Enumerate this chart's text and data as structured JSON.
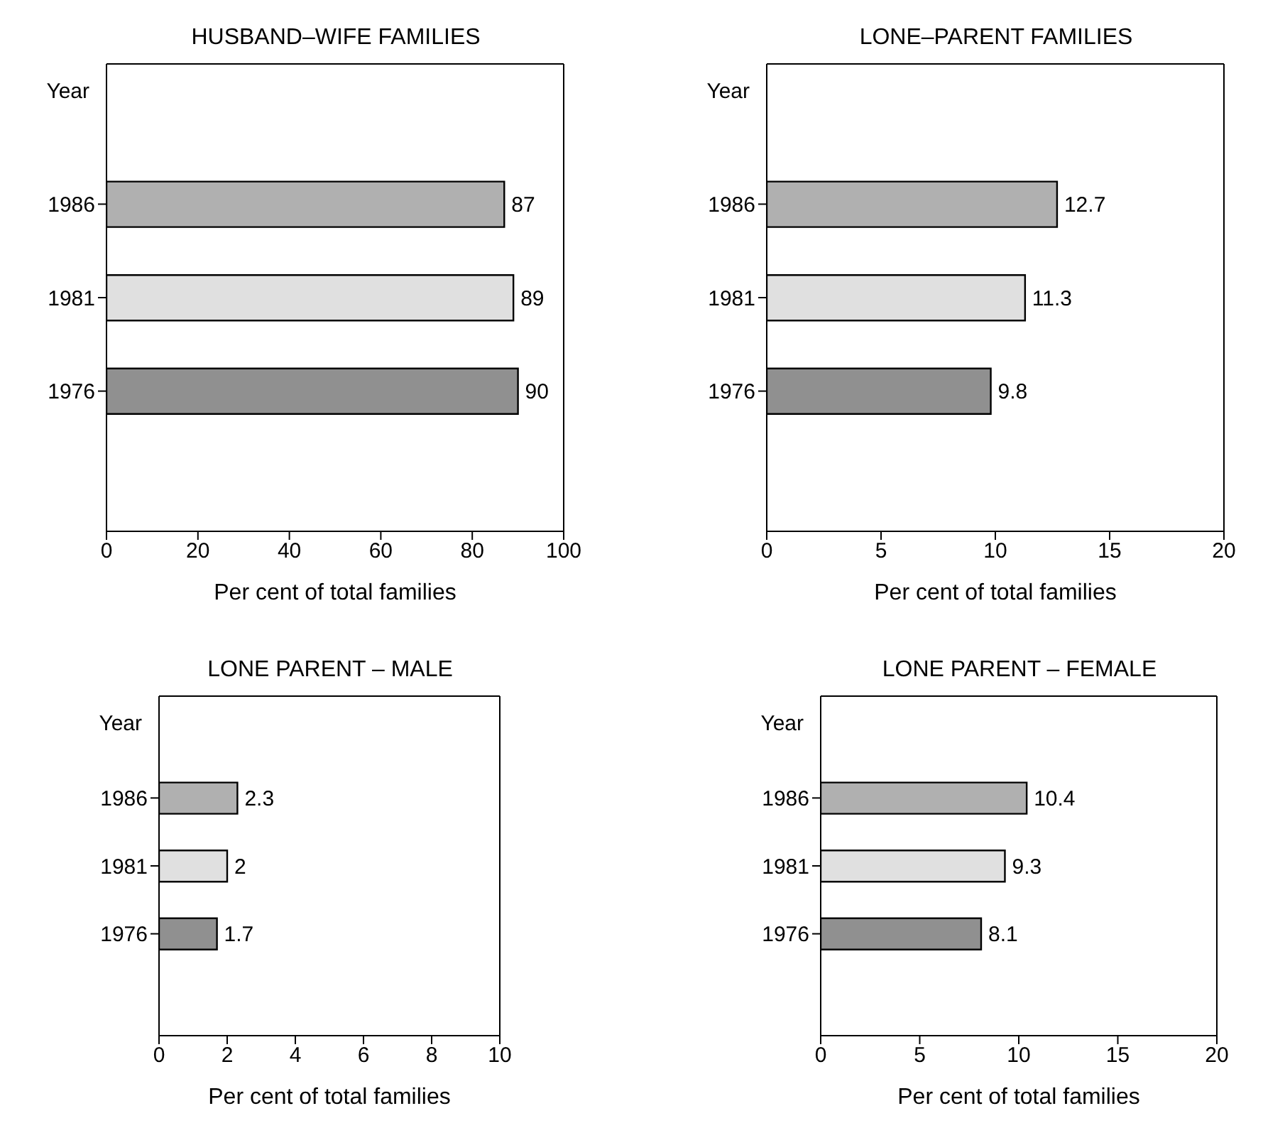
{
  "chart_data": [
    {
      "type": "bar",
      "orientation": "horizontal",
      "title": "HUSBAND–WIFE FAMILIES",
      "ylabel": "Year",
      "xlabel": "Per cent of total families",
      "categories": [
        "1986",
        "1981",
        "1976"
      ],
      "values": [
        87,
        89,
        90
      ],
      "colors": [
        "#b0b0b0",
        "#e0e0e0",
        "#909090"
      ],
      "xlim": [
        0,
        100
      ],
      "xticks": [
        0,
        20,
        40,
        60,
        80,
        100
      ],
      "data_labels": true,
      "grid": false,
      "legend": false
    },
    {
      "type": "bar",
      "orientation": "horizontal",
      "title": "LONE–PARENT FAMILIES",
      "ylabel": "Year",
      "xlabel": "Per cent of total families",
      "categories": [
        "1986",
        "1981",
        "1976"
      ],
      "values": [
        12.7,
        11.3,
        9.8
      ],
      "colors": [
        "#b0b0b0",
        "#e0e0e0",
        "#909090"
      ],
      "xlim": [
        0,
        20
      ],
      "xticks": [
        0,
        5,
        10,
        15,
        20
      ],
      "data_labels": true,
      "grid": false,
      "legend": false
    },
    {
      "type": "bar",
      "orientation": "horizontal",
      "title": "LONE PARENT – MALE",
      "ylabel": "Year",
      "xlabel": "Per cent of total families",
      "categories": [
        "1986",
        "1981",
        "1976"
      ],
      "values": [
        2.3,
        2,
        1.7
      ],
      "colors": [
        "#b0b0b0",
        "#e0e0e0",
        "#909090"
      ],
      "xlim": [
        0,
        10
      ],
      "xticks": [
        0,
        2,
        4,
        6,
        8,
        10
      ],
      "data_labels": true,
      "grid": false,
      "legend": false
    },
    {
      "type": "bar",
      "orientation": "horizontal",
      "title": "LONE PARENT – FEMALE",
      "ylabel": "Year",
      "xlabel": "Per cent of total families",
      "categories": [
        "1986",
        "1981",
        "1976"
      ],
      "values": [
        10.4,
        9.3,
        8.1
      ],
      "colors": [
        "#b0b0b0",
        "#e0e0e0",
        "#909090"
      ],
      "xlim": [
        0,
        20
      ],
      "xticks": [
        0,
        5,
        10,
        15,
        20
      ],
      "data_labels": true,
      "grid": false,
      "legend": false
    }
  ]
}
